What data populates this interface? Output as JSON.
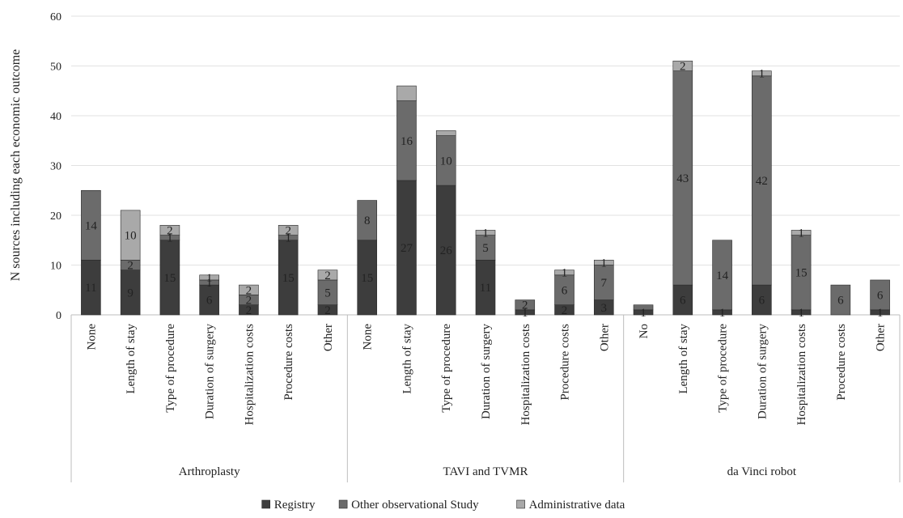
{
  "chart_data": {
    "type": "bar",
    "stacked": true,
    "ylabel": "N sources including each economic outcome",
    "ylim": [
      0,
      60
    ],
    "yticks": [
      0,
      10,
      20,
      30,
      40,
      50,
      60
    ],
    "grid": "horizontal",
    "legend_position": "bottom",
    "groups": [
      {
        "name": "Arthroplasty",
        "categories": [
          "None",
          "Length of stay",
          "Type of procedure",
          "Duration of surgery",
          "Hospitalization costs",
          "Procedure costs",
          "Other"
        ]
      },
      {
        "name": "TAVI and TVMR",
        "categories": [
          "None",
          "Length of stay",
          "Type of procedure",
          "Duration of surgery",
          "Hospitalization costs",
          "Procedure costs",
          "Other"
        ]
      },
      {
        "name": "da Vinci robot",
        "categories": [
          "No",
          "Length of stay",
          "Type of procedure",
          "Duration of surgery",
          "Hospitalization costs",
          "Procedure costs",
          "Other"
        ]
      }
    ],
    "series": [
      {
        "name": "Registry",
        "color": "#3d3d3d",
        "values": [
          11,
          9,
          15,
          6,
          2,
          15,
          2,
          15,
          27,
          26,
          11,
          1,
          2,
          3,
          1,
          6,
          1,
          6,
          1,
          0,
          1
        ],
        "labels": [
          "11",
          "9",
          "15",
          "6",
          "2",
          "15",
          "2",
          "15",
          "27",
          "26",
          "11",
          "1",
          "2",
          "3",
          "1",
          "6",
          "1",
          "6",
          "1",
          "",
          "1"
        ]
      },
      {
        "name": "Other observational Study",
        "color": "#6b6b6b",
        "values": [
          14,
          2,
          1,
          1,
          2,
          1,
          5,
          8,
          16,
          10,
          5,
          2,
          6,
          7,
          1,
          43,
          14,
          42,
          15,
          6,
          6
        ],
        "labels": [
          "14",
          "2",
          "1",
          "1",
          "2",
          "1",
          "5",
          "8",
          "16",
          "10",
          "5",
          "2",
          "6",
          "7",
          "",
          "43",
          "14",
          "42",
          "15",
          "6",
          "6"
        ]
      },
      {
        "name": "Administrative data",
        "color": "#a9a9a9",
        "values": [
          0,
          10,
          2,
          1,
          2,
          2,
          2,
          0,
          3,
          1,
          1,
          0,
          1,
          1,
          0,
          2,
          0,
          1,
          1,
          0,
          0
        ],
        "labels": [
          "",
          "10",
          "2",
          "1",
          "2",
          "2",
          "2",
          "",
          "",
          "",
          "1",
          "",
          "1",
          "1",
          "",
          "2",
          "",
          "1",
          "1",
          "",
          ""
        ]
      }
    ]
  }
}
